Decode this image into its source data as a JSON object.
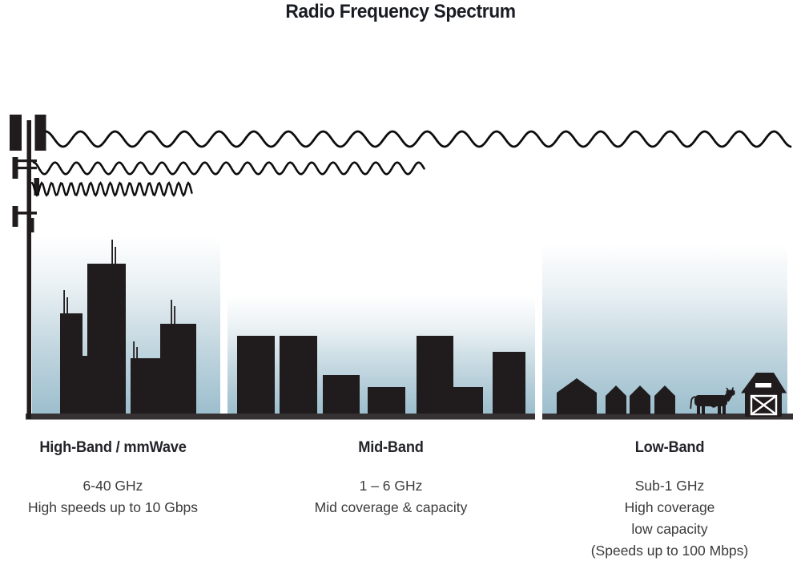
{
  "title": "Radio Frequency Spectrum",
  "bands": [
    {
      "id": "high-band",
      "heading": "High-Band / mmWave",
      "lines": [
        "6-40 GHz",
        "High speeds up to 10 Gbps"
      ],
      "scene_icon": "city-skyline",
      "wave_icon": "short-wavelength-wave"
    },
    {
      "id": "mid-band",
      "heading": "Mid-Band",
      "lines": [
        "1 – 6 GHz",
        "Mid coverage & capacity"
      ],
      "scene_icon": "mid-rise-buildings",
      "wave_icon": "medium-wavelength-wave"
    },
    {
      "id": "low-band",
      "heading": "Low-Band",
      "lines": [
        "Sub-1 GHz",
        "High coverage",
        "low capacity",
        "(Speeds up to 100 Mbps)"
      ],
      "scene_icon": "rural-houses-cow-barn",
      "wave_icon": "long-wavelength-wave"
    }
  ],
  "icons": [
    "cell-tower-icon",
    "long-wave-icon",
    "medium-wave-icon",
    "short-wave-icon",
    "city-skyline-icon",
    "mid-rise-buildings-icon",
    "house-icon",
    "cow-icon",
    "barn-icon"
  ],
  "colors": {
    "background": "#ffffff",
    "silhouette": "#201b1c",
    "ground": "#363132",
    "sky_gradient_top": "#ffffff",
    "sky_gradient_bottom": "#9cbecd",
    "title_text": "#191c23",
    "heading_text": "#23242a",
    "body_text": "#3b3b3b"
  }
}
